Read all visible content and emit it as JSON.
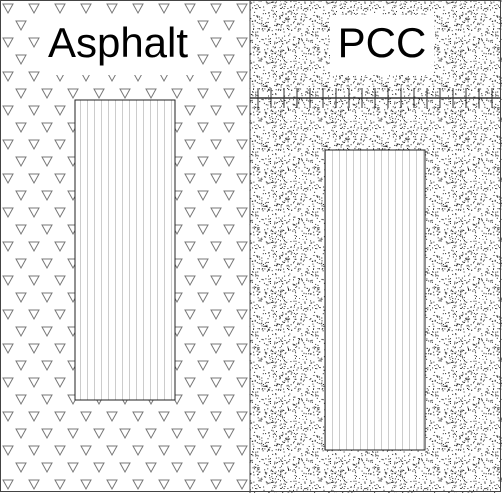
{
  "panels": [
    {
      "label": "Asphalt"
    },
    {
      "label": "PCC"
    }
  ]
}
